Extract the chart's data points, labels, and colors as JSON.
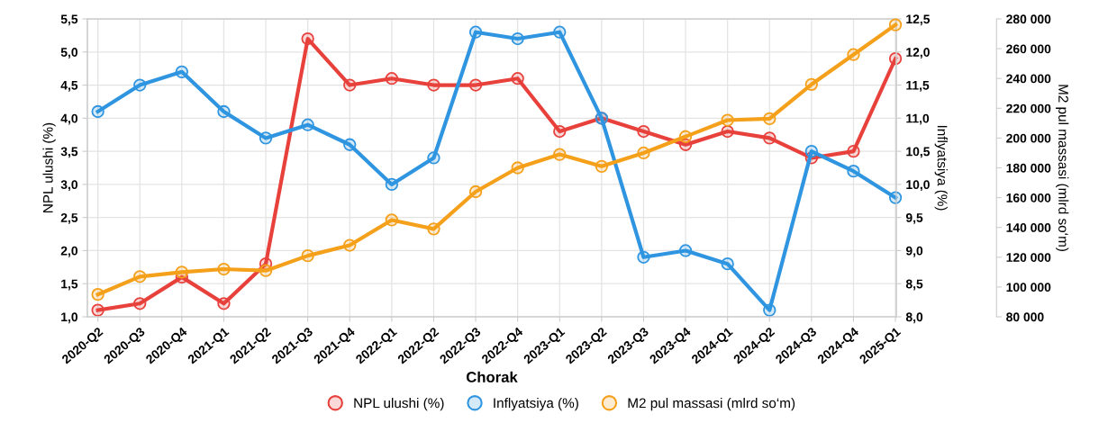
{
  "chart_data": {
    "type": "line",
    "xlabel": "Chorak",
    "ylabel": "NPL ulushi (%)",
    "y2label": "Inflyatsiya (%)",
    "y3label": "M2 pul massasi (mlrd so‘m)",
    "categories": [
      "2020-Q2",
      "2020-Q3",
      "2020-Q4",
      "2021-Q1",
      "2021-Q2",
      "2021-Q3",
      "2021-Q4",
      "2022-Q1",
      "2022-Q2",
      "2022-Q3",
      "2022-Q4",
      "2023-Q1",
      "2023-Q2",
      "2023-Q3",
      "2023-Q4",
      "2024-Q1",
      "2024-Q2",
      "2024-Q3",
      "2024-Q4",
      "2025-Q1"
    ],
    "series": [
      {
        "name": "NPL ulushi (%)",
        "color": "#e8413c",
        "values": [
          1.1,
          1.2,
          1.6,
          1.2,
          1.8,
          5.2,
          4.5,
          4.6,
          4.5,
          4.5,
          4.6,
          3.8,
          4.0,
          3.8,
          3.6,
          3.8,
          3.7,
          3.4,
          3.5,
          4.9
        ]
      },
      {
        "name": "Inflyatsiya (%)",
        "color": "#2f95e0",
        "axis": "y2",
        "values": [
          11.1,
          11.5,
          11.7,
          11.1,
          10.7,
          10.9,
          10.6,
          10.0,
          10.4,
          12.3,
          12.2,
          12.3,
          11.0,
          8.9,
          9.0,
          8.8,
          8.1,
          10.5,
          10.2,
          9.8
        ]
      },
      {
        "name": "M2 pul massasi (mlrd so‘m)",
        "color": "#f5a01a",
        "axis": "y3",
        "values": [
          95000,
          107000,
          110000,
          112000,
          111000,
          121000,
          128000,
          145000,
          139000,
          164000,
          180000,
          189000,
          181000,
          190000,
          201000,
          212000,
          213000,
          236000,
          256000,
          276000
        ]
      }
    ],
    "ylim": [
      1.0,
      5.5
    ],
    "yticks": [
      {
        "value": 1.0,
        "label": "1,0"
      },
      {
        "value": 1.5,
        "label": "1,5"
      },
      {
        "value": 2.0,
        "label": "2,0"
      },
      {
        "value": 2.5,
        "label": "2,5"
      },
      {
        "value": 3.0,
        "label": "3,0"
      },
      {
        "value": 3.5,
        "label": "3,5"
      },
      {
        "value": 4.0,
        "label": "4,0"
      },
      {
        "value": 4.5,
        "label": "4,5"
      },
      {
        "value": 5.0,
        "label": "5,0"
      },
      {
        "value": 5.5,
        "label": "5,5"
      }
    ],
    "y2lim": [
      8.0,
      12.5
    ],
    "y2ticks": [
      {
        "value": 8.0,
        "label": "8,0"
      },
      {
        "value": 8.5,
        "label": "8,5"
      },
      {
        "value": 9.0,
        "label": "9,0"
      },
      {
        "value": 9.5,
        "label": "9,5"
      },
      {
        "value": 10.0,
        "label": "10,0"
      },
      {
        "value": 10.5,
        "label": "10,5"
      },
      {
        "value": 11.0,
        "label": "11,0"
      },
      {
        "value": 11.5,
        "label": "11,5"
      },
      {
        "value": 12.0,
        "label": "12,0"
      },
      {
        "value": 12.5,
        "label": "12,5"
      }
    ],
    "y3lim": [
      80000,
      280000
    ],
    "y3ticks": [
      {
        "value": 80000,
        "label": "80 000"
      },
      {
        "value": 100000,
        "label": "100 000"
      },
      {
        "value": 120000,
        "label": "120 000"
      },
      {
        "value": 140000,
        "label": "140 000"
      },
      {
        "value": 160000,
        "label": "160 000"
      },
      {
        "value": 180000,
        "label": "180 000"
      },
      {
        "value": 200000,
        "label": "200 000"
      },
      {
        "value": 220000,
        "label": "220 000"
      },
      {
        "value": 240000,
        "label": "240 000"
      },
      {
        "value": 260000,
        "label": "260 000"
      },
      {
        "value": 280000,
        "label": "280 000"
      }
    ],
    "grid": true,
    "legend": "bottom",
    "marker": "circle",
    "line_style": "solid"
  }
}
